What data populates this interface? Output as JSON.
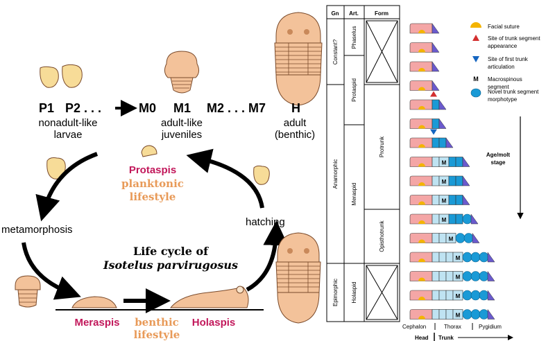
{
  "colors": {
    "body": "#f3c29a",
    "body_stroke": "#7a4a2a",
    "magenta": "#c2185b",
    "tan": "#e89a58",
    "larva": "#f7dc98",
    "cephalon_pink": "#f4a6a6",
    "thorax_light": "#bfe3f2",
    "thorax_blue": "#1a9ad6",
    "pygidium_purple": "#6a5acd",
    "suture_yellow": "#f4b400",
    "marker_red": "#d32f2f",
    "marker_blue": "#1565c0"
  },
  "left": {
    "stages": {
      "p1": "P1",
      "p2": "P2 . . .",
      "m0": "M0",
      "m1": "M1",
      "m2m7": "M2 . . . M7",
      "h": "H"
    },
    "group_labels": {
      "nonadult_1": "nonadult-like",
      "nonadult_2": "larvae",
      "juvenile_1": "adult-like",
      "juvenile_2": "juveniles",
      "adult_1": "adult",
      "adult_2": "(benthic)"
    },
    "protaspis": "Protaspis",
    "planktonic_1": "planktonic",
    "planktonic_2": "lifestyle",
    "metamorphosis": "metamorphosis",
    "hatching": "hatching",
    "title_1": "Life cycle of",
    "title_2": "Isotelus parvirugosus",
    "meraspis": "Meraspis",
    "benthic_1": "benthic",
    "benthic_2": "lifestyle",
    "holaspis": "Holaspis"
  },
  "table": {
    "headers": {
      "gn": "Gn",
      "art": "Art.",
      "form": "Form"
    },
    "gn": {
      "constant": "Constant?",
      "anamorphic": "Anamorphic",
      "epimorphic": "Epimorphic"
    },
    "art": {
      "phaselus": "Phaselus",
      "protaspid": "Protaspid",
      "meraspid": "Meraspid",
      "holaspid": "Holaspid"
    },
    "form": {
      "protrunk": "Protrunk",
      "opisthotrunk": "Opisthotrunk"
    }
  },
  "rows": [
    {
      "thorax_light": 0,
      "thorax_blue": 0,
      "macro": false,
      "circles": 0,
      "marker": ""
    },
    {
      "thorax_light": 0,
      "thorax_blue": 0,
      "macro": false,
      "circles": 0,
      "marker": ""
    },
    {
      "thorax_light": 0,
      "thorax_blue": 0,
      "macro": false,
      "circles": 0,
      "marker": ""
    },
    {
      "thorax_light": 0,
      "thorax_blue": 0,
      "macro": false,
      "circles": 0,
      "marker": "red"
    },
    {
      "thorax_light": 0,
      "thorax_blue": 1,
      "macro": false,
      "circles": 0,
      "marker": ""
    },
    {
      "thorax_light": 0,
      "thorax_blue": 1,
      "macro": false,
      "circles": 0,
      "marker": "blue"
    },
    {
      "thorax_light": 0,
      "thorax_blue": 2,
      "macro": false,
      "circles": 0,
      "marker": ""
    },
    {
      "thorax_light": 1,
      "thorax_blue": 2,
      "macro": true,
      "circles": 0,
      "marker": ""
    },
    {
      "thorax_light": 1,
      "thorax_blue": 2,
      "macro": true,
      "circles": 0,
      "marker": ""
    },
    {
      "thorax_light": 1,
      "thorax_blue": 2,
      "macro": true,
      "circles": 0,
      "marker": ""
    },
    {
      "thorax_light": 1,
      "thorax_blue": 2,
      "macro": true,
      "circles": 1,
      "marker": ""
    },
    {
      "thorax_light": 2,
      "thorax_blue": 0,
      "macro": true,
      "circles": 2,
      "marker": ""
    },
    {
      "thorax_light": 3,
      "thorax_blue": 0,
      "macro": true,
      "circles": 3,
      "marker": ""
    },
    {
      "thorax_light": 3,
      "thorax_blue": 0,
      "macro": true,
      "circles": 3,
      "marker": ""
    },
    {
      "thorax_light": 3,
      "thorax_blue": 0,
      "macro": true,
      "circles": 3,
      "marker": ""
    },
    {
      "thorax_light": 3,
      "thorax_blue": 0,
      "macro": true,
      "circles": 3,
      "marker": ""
    }
  ],
  "legend": {
    "facial_suture": "Facial suture",
    "trunk_appear_1": "Site of trunk segment",
    "trunk_appear_2": "appearance",
    "first_artic_1": "Site of first trunk",
    "first_artic_2": "articulation",
    "macro_symbol": "M",
    "macro_1": "Macrospinous",
    "macro_2": "segment",
    "novel_1": "Novel trunk segment",
    "novel_2": "morphotype",
    "age_1": "Age/molt",
    "age_2": "stage"
  },
  "macro_letter": "M",
  "bottom": {
    "cephalon": "Cephalon",
    "thorax": "Thorax",
    "pygidium": "Pygidium",
    "head": "Head",
    "trunk": "Trunk"
  }
}
